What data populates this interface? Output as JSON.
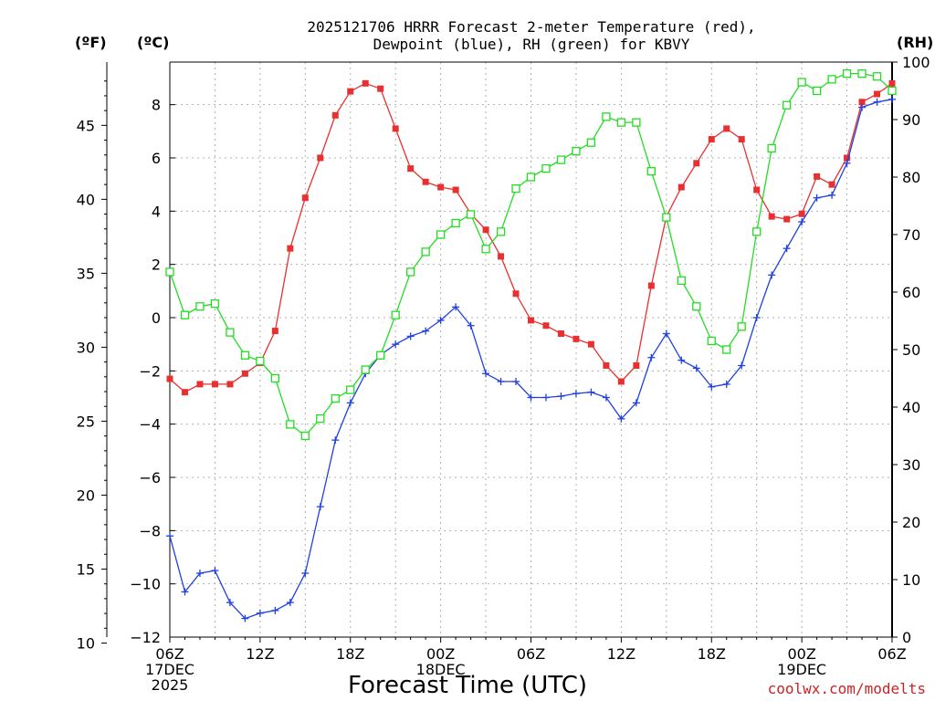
{
  "chart_data": {
    "type": "line",
    "title_line1": "2025121706 HRRR Forecast 2-meter Temperature (red),",
    "title_line2": "Dewpoint (blue), RH (green) for KBVY",
    "xlabel": "Forecast Time (UTC)",
    "credit": "coolwx.com/modelts",
    "unit_f": "(ºF)",
    "unit_c": "(ºC)",
    "unit_rh": "(RH)",
    "x_hours": [
      0,
      1,
      2,
      3,
      4,
      5,
      6,
      7,
      8,
      9,
      10,
      11,
      12,
      13,
      14,
      15,
      16,
      17,
      18,
      19,
      20,
      21,
      22,
      23,
      24,
      25,
      26,
      27,
      28,
      29,
      30,
      31,
      32,
      33,
      34,
      35,
      36,
      37,
      38,
      39,
      40,
      41,
      42,
      43,
      44,
      45,
      46,
      47,
      48
    ],
    "x_ticks": [
      {
        "hour": 0,
        "lines": [
          "06Z",
          "17DEC",
          "2025"
        ]
      },
      {
        "hour": 6,
        "lines": [
          "12Z"
        ]
      },
      {
        "hour": 12,
        "lines": [
          "18Z"
        ]
      },
      {
        "hour": 18,
        "lines": [
          "00Z",
          "18DEC"
        ]
      },
      {
        "hour": 24,
        "lines": [
          "06Z"
        ]
      },
      {
        "hour": 30,
        "lines": [
          "12Z"
        ]
      },
      {
        "hour": 36,
        "lines": [
          "18Z"
        ]
      },
      {
        "hour": 42,
        "lines": [
          "00Z",
          "19DEC"
        ]
      },
      {
        "hour": 48,
        "lines": [
          "06Z"
        ]
      }
    ],
    "c_axis": {
      "range": [
        -12,
        9.6
      ],
      "ticks": [
        -12,
        -10,
        -8,
        -6,
        -4,
        -2,
        0,
        2,
        4,
        6,
        8
      ]
    },
    "f_axis": {
      "ticks": [
        10,
        15,
        20,
        25,
        30,
        35,
        40,
        45
      ]
    },
    "rh_axis": {
      "range": [
        0,
        100
      ],
      "ticks": [
        0,
        10,
        20,
        30,
        40,
        50,
        60,
        70,
        80,
        90,
        100
      ]
    },
    "series": [
      {
        "name": "2-meter Temperature",
        "units": "C",
        "color": "#e83030",
        "marker": "filled-square",
        "values": [
          -2.3,
          -2.8,
          -2.5,
          -2.5,
          -2.5,
          -2.1,
          -1.7,
          -0.5,
          2.6,
          4.5,
          6.0,
          7.6,
          8.5,
          8.8,
          8.6,
          7.1,
          5.6,
          5.1,
          4.9,
          4.8,
          3.9,
          3.3,
          2.3,
          0.9,
          -0.1,
          -0.3,
          -0.6,
          -0.8,
          -1.0,
          -1.8,
          -2.4,
          -1.8,
          1.2,
          3.8,
          4.9,
          5.8,
          6.7,
          7.1,
          6.7,
          4.8,
          3.8,
          3.7,
          3.9,
          5.3,
          5.0,
          6.0,
          8.1,
          8.4,
          8.8
        ]
      },
      {
        "name": "Dewpoint",
        "units": "C",
        "color": "#2040e0",
        "marker": "plus",
        "values": [
          -8.2,
          -10.3,
          -9.6,
          -9.5,
          -10.7,
          -11.3,
          -11.1,
          -11.0,
          -10.7,
          -9.6,
          -7.1,
          -4.6,
          -3.2,
          -2.1,
          -1.4,
          -1.0,
          -0.7,
          -0.5,
          -0.1,
          0.4,
          -0.3,
          -2.1,
          -2.4,
          -2.4,
          -3.0,
          -3.0,
          -2.95,
          -2.85,
          -2.8,
          -3.0,
          -3.8,
          -3.2,
          -1.5,
          -0.6,
          -1.6,
          -1.9,
          -2.6,
          -2.5,
          -1.8,
          0.0,
          1.6,
          2.6,
          3.6,
          4.5,
          4.6,
          5.8,
          7.9,
          8.1,
          8.2
        ]
      },
      {
        "name": "RH",
        "units": "%",
        "color": "#22dd22",
        "marker": "open-square",
        "values": [
          63.5,
          56,
          57.5,
          58,
          53,
          49,
          48,
          45,
          37,
          35,
          38,
          41.5,
          43,
          46.5,
          49,
          56,
          63.5,
          67,
          70,
          72,
          73.5,
          67.5,
          70.5,
          78,
          80,
          81.5,
          83,
          84.5,
          86,
          90.5,
          89.5,
          89.5,
          81,
          73,
          62,
          57.5,
          51.5,
          50,
          54,
          70.5,
          85,
          92.5,
          96.5,
          95,
          97,
          98,
          98,
          97.5,
          95
        ]
      }
    ]
  }
}
